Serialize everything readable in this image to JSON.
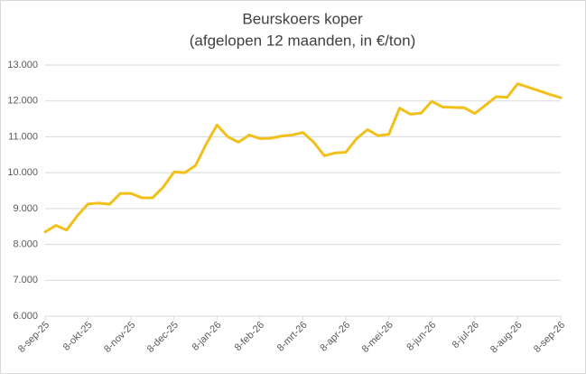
{
  "chart_data": {
    "type": "line",
    "title": "Beurskoers koper",
    "subtitle": "(afgelopen 12 maanden, in €/ton)",
    "categories": [
      "8-sep-25",
      null,
      null,
      null,
      "8-okt-25",
      null,
      null,
      null,
      "8-nov-25",
      null,
      null,
      null,
      "8-dec-25",
      null,
      null,
      null,
      "8-jan-26",
      null,
      null,
      null,
      "8-feb-26",
      null,
      null,
      null,
      "8-mrt-26",
      null,
      null,
      null,
      "8-apr-26",
      null,
      null,
      null,
      "8-mei-26",
      null,
      null,
      null,
      "8-jun-26",
      null,
      null,
      null,
      "8-jul-26",
      null,
      null,
      null,
      "8-aug-26",
      null,
      null,
      null,
      "8-sep-26"
    ],
    "values": [
      8350,
      8530,
      8400,
      8800,
      9130,
      9150,
      9120,
      9420,
      9420,
      9300,
      9300,
      9600,
      10020,
      10000,
      10200,
      10800,
      11330,
      11000,
      10850,
      11050,
      10950,
      10960,
      11020,
      11050,
      11120,
      10850,
      10470,
      10550,
      10570,
      10950,
      11200,
      11030,
      11070,
      11800,
      11630,
      11660,
      11990,
      11830,
      11820,
      11810,
      11650,
      11880,
      12120,
      12100,
      12480,
      12380,
      12280,
      12180,
      12090
    ],
    "color": "#f2c01b",
    "ylim": [
      6000,
      13000
    ],
    "yticks": [
      {
        "value": 6000,
        "label": "6.000"
      },
      {
        "value": 7000,
        "label": "7.000"
      },
      {
        "value": 8000,
        "label": "8.000"
      },
      {
        "value": 9000,
        "label": "9.000"
      },
      {
        "value": 10000,
        "label": "10.000"
      },
      {
        "value": 11000,
        "label": "11.000"
      },
      {
        "value": 12000,
        "label": "12.000"
      },
      {
        "value": 13000,
        "label": "13.000"
      }
    ],
    "grid": true
  }
}
